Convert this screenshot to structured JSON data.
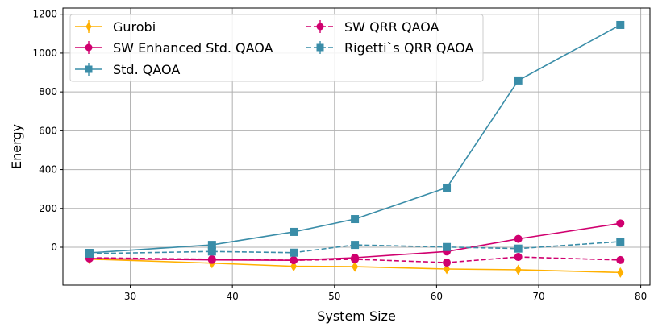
{
  "chart_data": {
    "type": "line",
    "xlabel": "System Size",
    "ylabel": "Energy",
    "xlim": [
      23.4,
      80.9
    ],
    "ylim": [
      -195,
      1232
    ],
    "xticks": [
      30,
      40,
      50,
      60,
      70,
      80
    ],
    "yticks": [
      0,
      200,
      400,
      600,
      800,
      1000,
      1200
    ],
    "grid": true,
    "legend_placement": "top-left",
    "x": [
      26,
      38,
      46,
      52,
      61,
      68,
      78
    ],
    "series": [
      {
        "name": "Gurobi",
        "color": "#ffb000",
        "marker": "diamond",
        "dash": false,
        "values": [
          -61,
          -82,
          -98,
          -100,
          -112,
          -116,
          -130
        ]
      },
      {
        "name": "SW Enhanced Std. QAOA",
        "color": "#d0006f",
        "marker": "circle",
        "dash": false,
        "values": [
          -58,
          -65,
          -67,
          -54,
          -22,
          43,
          123
        ]
      },
      {
        "name": "Std. QAOA",
        "color": "#3a8da8",
        "marker": "square",
        "dash": false,
        "values": [
          -29,
          12,
          79,
          145,
          307,
          859,
          1145
        ]
      },
      {
        "name": "SW QRR QAOA",
        "color": "#d0006f",
        "marker": "circle",
        "dash": true,
        "values": [
          -54,
          -62,
          -67,
          -62,
          -79,
          -50,
          -66
        ]
      },
      {
        "name": "Rigetti`s QRR QAOA",
        "color": "#3a8da8",
        "marker": "square",
        "dash": true,
        "values": [
          -33,
          -22,
          -28,
          12,
          1,
          -7,
          29
        ]
      }
    ]
  }
}
